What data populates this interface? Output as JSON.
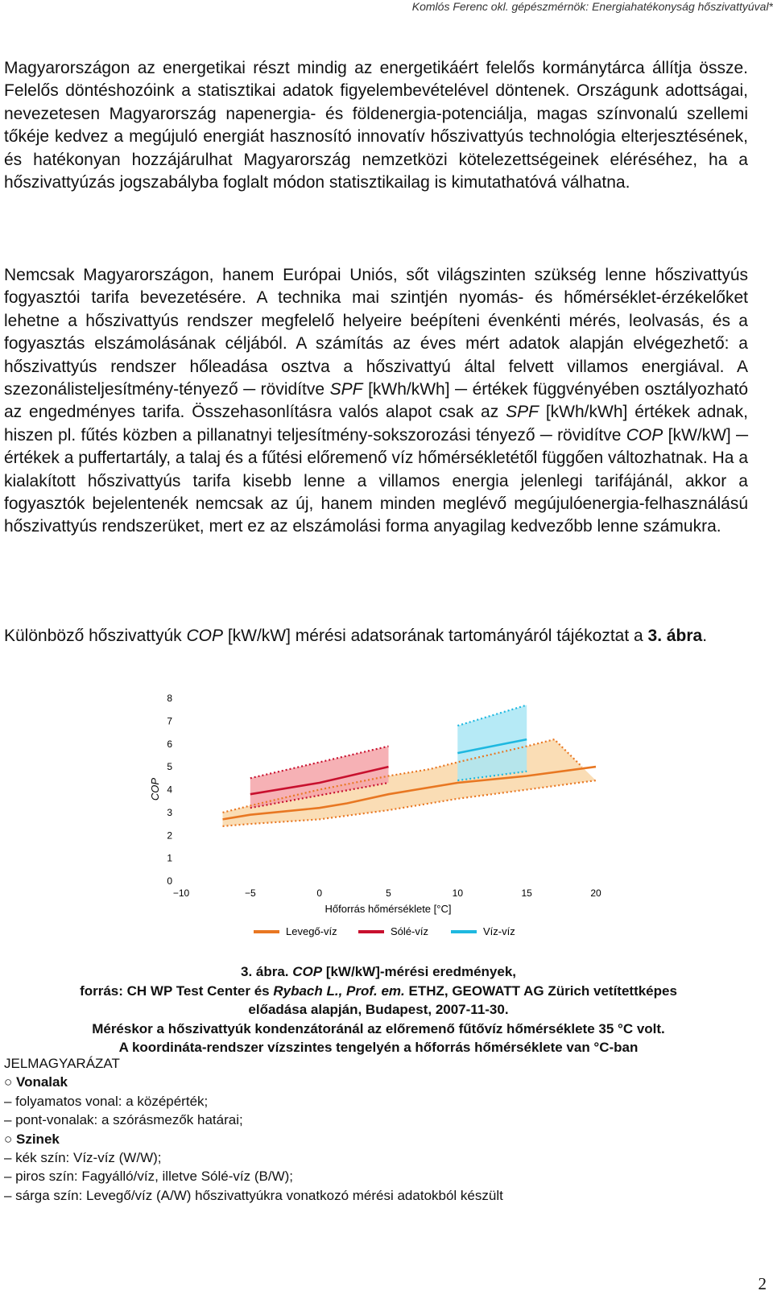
{
  "header": "Komlós Ferenc okl. gépészmérnök: Energiahatékonyság hőszivattyúval*",
  "paragraphs": {
    "p1": "Magyarországon az energetikai részt mindig az energetikáért felelős kormánytárca állítja össze. Felelős döntéshozóink a statisztikai adatok figyelembevételével döntenek. Országunk adottságai, nevezetesen Magyarország napenergia- és földenergia-potenciálja, magas színvonalú szellemi tőkéje kedvez a megújuló energiát hasznosító innovatív hőszivattyús technológia elterjesztésének, és hatékonyan hozzájárulhat Magyarország nemzetközi kötelezettségeinek eléréséhez, ha a hőszivattyúzás jogszabályba foglalt módon statisztikailag is kimutathatóvá válhatna.",
    "p2_a": "Nemcsak Magyarországon, hanem Európai Uniós, sőt világszinten szükség lenne hőszivattyús fogyasztói tarifa bevezetésére. A technika mai szintjén nyomás- és hőmérséklet-érzékelőket lehetne a hőszivattyús rendszer megfelelő helyeire beépíteni évenkénti mérés, leolvasás, és a fogyasztás elszámolásának céljából. A számítás az éves mért adatok alapján elvégezhető: a hőszivattyús rendszer hőleadása osztva a hőszivattyú által felvett villamos energiával. A szezonálisteljesítmény-tényező ─ rövidítve ",
    "p2_spf1": "SPF",
    "p2_b": " [kWh/kWh] ─ értékek függvényében osztályozható az engedményes tarifa. Összehasonlításra valós alapot csak az ",
    "p2_spf2": "SPF",
    "p2_c": " [kWh/kWh] értékek adnak, hiszen pl. fűtés közben a pillanatnyi teljesítmény-sokszorozási tényező ─ rövidítve ",
    "p2_cop": "COP",
    "p2_d": " [kW/kW] ─ értékek a puffertartály, a talaj és a fűtési előremenő víz hőmérsékletétől függően változhatnak. Ha a kialakított hőszivattyús tarifa kisebb lenne a villamos energia jelenlegi tarifájánál, akkor a fogyasztók bejelentenék nemcsak az új, hanem minden meglévő megújulóenergia-felhasználású hőszivattyús rendszerüket, mert ez az elszámolási forma anyagilag kedvezőbb lenne számukra.",
    "p3_a": "Különböző hőszivattyúk ",
    "p3_cop": "COP",
    "p3_b": " [kW/kW] mérési adatsorának tartományáról tájékoztat a ",
    "p3_ref": "3. ábra",
    "p3_c": "."
  },
  "chart_data": {
    "type": "line",
    "xlabel": "Hőforrás hőmérséklete [°C]",
    "ylabel": "COP",
    "xlim": [
      -10,
      20
    ],
    "ylim": [
      0,
      8
    ],
    "xticks": [
      "−10",
      "−5",
      "0",
      "5",
      "10",
      "15",
      "20"
    ],
    "yticks": [
      "0",
      "1",
      "2",
      "3",
      "4",
      "5",
      "6",
      "7",
      "8"
    ],
    "legend_position": "bottom",
    "series": [
      {
        "name": "Levegő-víz",
        "color": "#e87722",
        "band_color": "#f9d7a8",
        "mean": [
          [
            -7,
            2.7
          ],
          [
            -5,
            2.9
          ],
          [
            0,
            3.2
          ],
          [
            2,
            3.4
          ],
          [
            5,
            3.8
          ],
          [
            10,
            4.3
          ],
          [
            15,
            4.6
          ],
          [
            20,
            5.0
          ]
        ],
        "upper": [
          [
            -7,
            3.0
          ],
          [
            -5,
            3.3
          ],
          [
            0,
            4.0
          ],
          [
            5,
            4.6
          ],
          [
            8,
            4.9
          ],
          [
            10,
            5.2
          ],
          [
            15,
            5.9
          ],
          [
            17,
            6.2
          ],
          [
            19,
            5.0
          ]
        ],
        "lower": [
          [
            -7,
            2.4
          ],
          [
            -5,
            2.5
          ],
          [
            0,
            2.7
          ],
          [
            5,
            3.1
          ],
          [
            10,
            3.6
          ],
          [
            15,
            4.0
          ],
          [
            20,
            4.4
          ]
        ]
      },
      {
        "name": "Sólé-víz",
        "color": "#c8102e",
        "band_color": "#f5a3a8",
        "mean": [
          [
            -5,
            3.8
          ],
          [
            0,
            4.3
          ],
          [
            5,
            5.0
          ]
        ],
        "upper": [
          [
            -5,
            4.5
          ],
          [
            5,
            5.9
          ]
        ],
        "lower": [
          [
            -5,
            3.2
          ],
          [
            5,
            4.3
          ]
        ]
      },
      {
        "name": "Víz-víz",
        "color": "#1eb8e0",
        "band_color": "#a9e6f5",
        "mean": [
          [
            10,
            5.6
          ],
          [
            15,
            6.2
          ]
        ],
        "upper": [
          [
            10,
            6.8
          ],
          [
            15,
            7.7
          ]
        ],
        "lower": [
          [
            10,
            4.4
          ],
          [
            15,
            4.8
          ]
        ]
      }
    ]
  },
  "caption": {
    "line1_a": "3. ábra. ",
    "line1_cop": "COP",
    "line1_b": " [kW/kW]-mérési eredmények,",
    "line2_a": "forrás: CH WP Test Center és ",
    "line2_author": "Rybach L., Prof. em.",
    "line2_b": " ETHZ, GEOWATT AG Zürich vetítettképes",
    "line3": "előadása alapján, Budapest, 2007-11-30.",
    "line4": "Méréskor a hőszivattyúk kondenzátoránál az előremenő fűtővíz hőmérséklete 35 °C volt.",
    "line5": "A koordináta-rendszer vízszintes tengelyén a hőforrás hőmérséklete van °C-ban"
  },
  "legend_text": {
    "title": "JELMAGYARÁZAT",
    "lines_head": "○ Vonalak",
    "line_1": "– folyamatos vonal: a középérték;",
    "line_2": "– pont-vonalak: a szórásmezők határai;",
    "colors_head": "○ Szinek",
    "color_1": "– kék szín: Víz-víz (W/W);",
    "color_2": "– piros szín: Fagyálló/víz, illetve Sólé-víz (B/W);",
    "color_3": "– sárga szín: Levegő/víz (A/W) hőszivattyúkra vonatkozó mérési adatokból készült"
  },
  "page_number": "2"
}
